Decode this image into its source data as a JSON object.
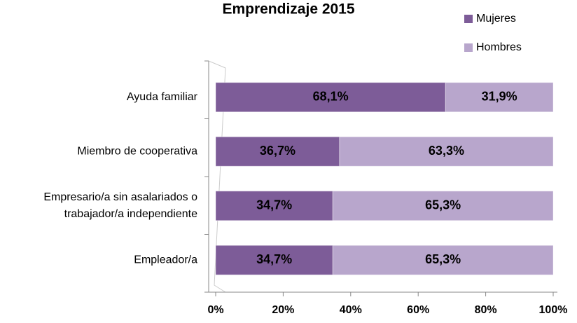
{
  "chart_data": {
    "type": "stacked_barh",
    "title": "Emprendizaje 2015",
    "categories": [
      "Ayuda familiar",
      "Miembro de cooperativa",
      "Empresario/a sin asalariados o\ntrabajador/a independiente",
      "Empleador/a"
    ],
    "series": [
      {
        "name": "Mujeres",
        "color": "#7d5c98",
        "values": [
          68.1,
          36.7,
          34.7,
          34.7
        ],
        "value_labels": [
          "68,1%",
          "36,7%",
          "34,7%",
          "34,7%"
        ]
      },
      {
        "name": "Hombres",
        "color": "#b8a6cc",
        "values": [
          31.9,
          63.3,
          65.3,
          65.3
        ],
        "value_labels": [
          "31,9%",
          "63,3%",
          "65,3%",
          "65,3%"
        ]
      }
    ],
    "xlim": [
      0,
      100
    ],
    "xticks": [
      {
        "value": 0,
        "label": "0%"
      },
      {
        "value": 20,
        "label": "20%"
      },
      {
        "value": 40,
        "label": "40%"
      },
      {
        "value": 60,
        "label": "60%"
      },
      {
        "value": 80,
        "label": "80%"
      },
      {
        "value": 100,
        "label": "100%"
      }
    ],
    "legend": "top-right"
  }
}
